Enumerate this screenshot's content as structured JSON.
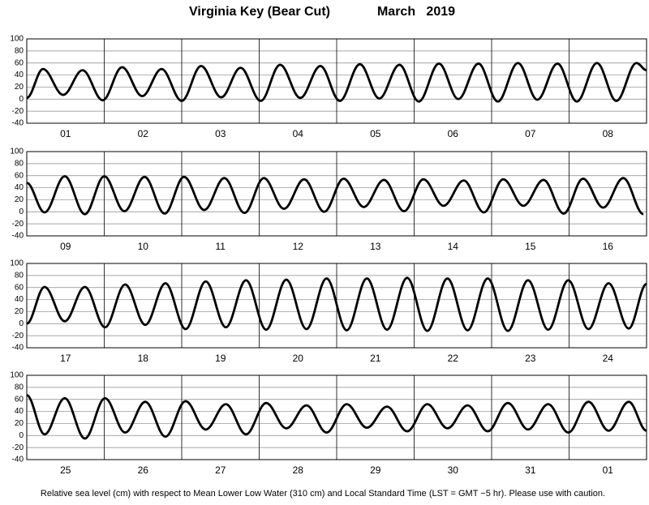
{
  "title": "Virginia Key (Bear Cut)",
  "subtitle": "March   2019",
  "footnote": "Relative sea level (cm) with respect to Mean Lower Low Water (310 cm) and Local Standard Time (LST = GMT −5 hr). Please use with caution.",
  "chart_data": [
    {
      "type": "line",
      "categories": [
        "01",
        "02",
        "03",
        "04",
        "05",
        "06",
        "07",
        "08"
      ],
      "xlim": [
        0,
        8
      ],
      "ylim": [
        -40,
        100
      ],
      "yticks": [
        100,
        80,
        60,
        40,
        20,
        0,
        -20,
        -40
      ],
      "grid": true,
      "color": "#000000",
      "x": [
        0,
        0.21,
        0.47,
        0.72,
        0.98,
        1.23,
        1.49,
        1.74,
        2.0,
        2.25,
        2.51,
        2.76,
        3.02,
        3.27,
        3.53,
        3.79,
        4.04,
        4.3,
        4.55,
        4.81,
        5.06,
        5.32,
        5.57,
        5.83,
        6.08,
        6.34,
        6.59,
        6.85,
        7.1,
        7.36,
        7.61,
        7.87,
        8.0
      ],
      "values": [
        2,
        50,
        7,
        48,
        -2,
        53,
        5,
        50,
        -3,
        55,
        3,
        52,
        -3,
        57,
        2,
        55,
        -3,
        58,
        1,
        57,
        -4,
        59,
        0,
        59,
        -4,
        60,
        -1,
        59,
        -4,
        60,
        -3,
        60,
        48
      ]
    },
    {
      "type": "line",
      "categories": [
        "09",
        "10",
        "11",
        "12",
        "13",
        "14",
        "15",
        "16"
      ],
      "xlim": [
        0,
        8
      ],
      "ylim": [
        -40,
        100
      ],
      "yticks": [
        100,
        80,
        60,
        40,
        20,
        0,
        -20,
        -40
      ],
      "grid": true,
      "color": "#000000",
      "x": [
        0,
        0.23,
        0.49,
        0.75,
        1.0,
        1.26,
        1.52,
        1.78,
        2.03,
        2.29,
        2.55,
        2.81,
        3.06,
        3.32,
        3.58,
        3.84,
        4.09,
        4.35,
        4.61,
        4.87,
        5.12,
        5.38,
        5.64,
        5.9,
        6.15,
        6.41,
        6.67,
        6.93,
        7.18,
        7.44,
        7.7,
        7.96
      ],
      "values": [
        48,
        -1,
        59,
        -4,
        59,
        1,
        58,
        -3,
        58,
        3,
        56,
        -2,
        56,
        5,
        54,
        0,
        55,
        8,
        53,
        1,
        54,
        10,
        52,
        -1,
        54,
        10,
        53,
        -3,
        55,
        7,
        56,
        -4
      ]
    },
    {
      "type": "line",
      "categories": [
        "17",
        "18",
        "19",
        "20",
        "21",
        "22",
        "23",
        "24"
      ],
      "xlim": [
        0,
        8
      ],
      "ylim": [
        -40,
        100
      ],
      "yticks": [
        100,
        80,
        60,
        40,
        20,
        0,
        -20,
        -40
      ],
      "grid": true,
      "color": "#000000",
      "x": [
        0,
        0.23,
        0.49,
        0.75,
        1.01,
        1.27,
        1.53,
        1.79,
        2.05,
        2.31,
        2.57,
        2.83,
        3.09,
        3.35,
        3.61,
        3.87,
        4.13,
        4.39,
        4.65,
        4.91,
        5.17,
        5.43,
        5.69,
        5.95,
        6.21,
        6.47,
        6.73,
        6.99,
        7.25,
        7.51,
        7.77,
        8.0
      ],
      "values": [
        0,
        61,
        4,
        61,
        -6,
        65,
        -2,
        67,
        -9,
        70,
        -6,
        72,
        -10,
        73,
        -9,
        75,
        -11,
        75,
        -10,
        76,
        -12,
        75,
        -11,
        75,
        -12,
        72,
        -10,
        72,
        -9,
        67,
        -8,
        66
      ]
    },
    {
      "type": "line",
      "categories": [
        "25",
        "26",
        "27",
        "28",
        "29",
        "30",
        "31",
        "01"
      ],
      "xlim": [
        0,
        8
      ],
      "ylim": [
        -40,
        100
      ],
      "yticks": [
        100,
        80,
        60,
        40,
        20,
        0,
        -20,
        -40
      ],
      "grid": true,
      "color": "#000000",
      "x": [
        0,
        0.23,
        0.49,
        0.75,
        1.01,
        1.27,
        1.53,
        1.79,
        2.05,
        2.31,
        2.57,
        2.83,
        3.09,
        3.35,
        3.61,
        3.87,
        4.13,
        4.39,
        4.65,
        4.91,
        5.17,
        5.43,
        5.69,
        5.95,
        6.21,
        6.47,
        6.73,
        6.99,
        7.25,
        7.51,
        7.77,
        8.0
      ],
      "values": [
        67,
        2,
        62,
        -5,
        62,
        5,
        56,
        -2,
        57,
        10,
        52,
        2,
        54,
        12,
        50,
        5,
        52,
        13,
        48,
        7,
        52,
        12,
        50,
        7,
        54,
        10,
        52,
        5,
        56,
        8,
        56,
        8
      ]
    }
  ]
}
